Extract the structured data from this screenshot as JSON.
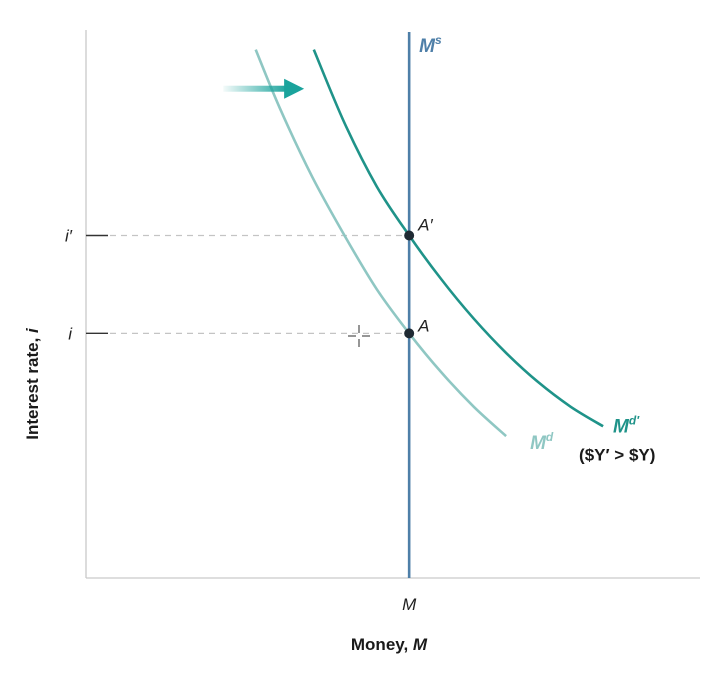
{
  "chart_data": {
    "type": "line",
    "title": "",
    "xlabel_text": "Money, ",
    "xlabel_var": "M",
    "ylabel_text": "Interest rate, ",
    "ylabel_var": "i",
    "x_tick_label": "M",
    "y_tick_labels": {
      "low": "i",
      "high": "i′"
    },
    "money_supply": {
      "name": "M",
      "sup": "s",
      "color": "#4e7fa8"
    },
    "series": [
      {
        "id": "md",
        "name": "M",
        "sup": "d",
        "color": "#8fc7c3",
        "x": [
          105,
          120,
          140,
          160,
          180,
          200,
          220,
          240,
          260
        ],
        "y": [
          108,
          96,
          82,
          70,
          59,
          50,
          42,
          35,
          29
        ]
      },
      {
        "id": "md2",
        "name": "M",
        "sup": "d′",
        "note": "($Y′ > $Y)",
        "color": "#1f9389",
        "x": [
          141,
          160,
          180,
          200,
          220,
          240,
          260,
          280,
          300,
          320
        ],
        "y": [
          108,
          93,
          80,
          70,
          61,
          53,
          46,
          40,
          35,
          31
        ]
      }
    ],
    "points": [
      {
        "label": "A",
        "x": 200,
        "y": 50
      },
      {
        "label": "A′",
        "x": 200,
        "y": 70
      }
    ],
    "shift_arrow": {
      "from": 85,
      "to": 135,
      "y": 100,
      "color": "#1aa39c"
    },
    "xlim": [
      0,
      380
    ],
    "ylim": [
      0,
      112
    ],
    "grid": false,
    "legend": "none"
  }
}
